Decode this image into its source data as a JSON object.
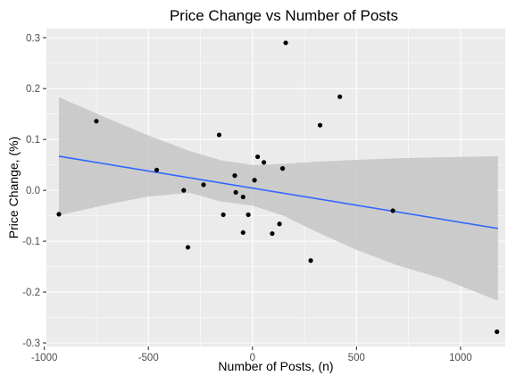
{
  "chart_data": {
    "type": "scatter",
    "title": "Price Change vs Number of Posts",
    "xlabel": "Number of Posts, (n)",
    "ylabel": "Price Change, (%)",
    "xlim": [
      -990,
      1215
    ],
    "ylim": [
      -0.307,
      0.318
    ],
    "x_ticks": [
      -1000,
      -500,
      0,
      500,
      1000
    ],
    "x_tick_labels": [
      "-1000",
      "-500",
      "0",
      "500",
      "1000"
    ],
    "y_ticks": [
      -0.3,
      -0.2,
      -0.1,
      0.0,
      0.1,
      0.2,
      0.3
    ],
    "y_tick_labels": [
      "-0.3",
      "-0.2",
      "-0.1",
      "0.0",
      "0.1",
      "0.2",
      "0.3"
    ],
    "grid": true,
    "points": [
      {
        "x": -930,
        "y": -0.047
      },
      {
        "x": -750,
        "y": 0.136
      },
      {
        "x": -460,
        "y": 0.04
      },
      {
        "x": -330,
        "y": 0.0
      },
      {
        "x": -310,
        "y": -0.112
      },
      {
        "x": -235,
        "y": 0.011
      },
      {
        "x": -160,
        "y": 0.109
      },
      {
        "x": -140,
        "y": -0.048
      },
      {
        "x": -85,
        "y": 0.029
      },
      {
        "x": -80,
        "y": -0.004
      },
      {
        "x": -45,
        "y": -0.013
      },
      {
        "x": -45,
        "y": -0.083
      },
      {
        "x": -20,
        "y": -0.048
      },
      {
        "x": 10,
        "y": 0.02
      },
      {
        "x": 25,
        "y": 0.066
      },
      {
        "x": 55,
        "y": 0.055
      },
      {
        "x": 95,
        "y": -0.085
      },
      {
        "x": 130,
        "y": -0.066
      },
      {
        "x": 145,
        "y": 0.043
      },
      {
        "x": 160,
        "y": 0.29
      },
      {
        "x": 280,
        "y": -0.138
      },
      {
        "x": 325,
        "y": 0.128
      },
      {
        "x": 420,
        "y": 0.184
      },
      {
        "x": 675,
        "y": -0.04
      },
      {
        "x": 1175,
        "y": -0.278
      }
    ],
    "trend_line": {
      "x": [
        -930,
        1180
      ],
      "y": [
        0.067,
        -0.075
      ]
    },
    "confidence_band": {
      "x": [
        -930,
        -700,
        -500,
        -300,
        -150,
        0,
        150,
        300,
        500,
        700,
        900,
        1180
      ],
      "upper": [
        0.183,
        0.142,
        0.108,
        0.077,
        0.059,
        0.05,
        0.052,
        0.056,
        0.06,
        0.063,
        0.065,
        0.067
      ],
      "lower": [
        -0.049,
        -0.028,
        -0.012,
        -0.005,
        -0.022,
        -0.03,
        -0.05,
        -0.08,
        -0.117,
        -0.148,
        -0.172,
        -0.217
      ]
    },
    "colors": {
      "panel": "#ebebeb",
      "grid": "#ffffff",
      "points": "#000000",
      "trend_line": "#3366ff",
      "confidence_band": "#c6c6c6"
    }
  }
}
